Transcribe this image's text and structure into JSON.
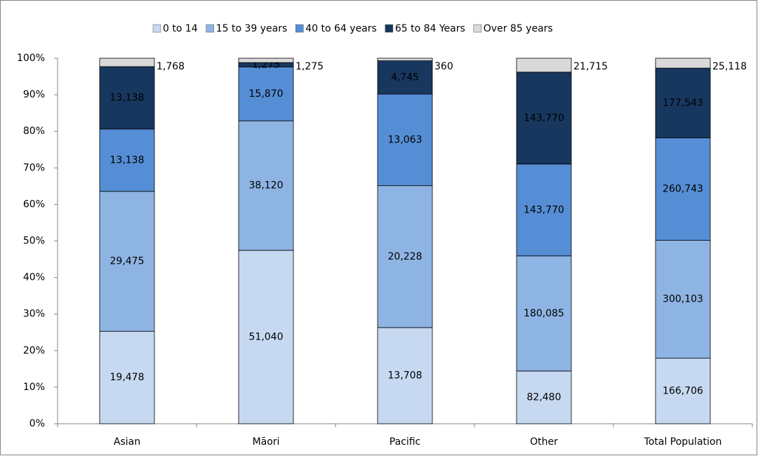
{
  "chart_data": {
    "type": "bar",
    "stacked": "percent",
    "categories": [
      "Asian",
      "Māori",
      "Pacific",
      "Other",
      "Total Population"
    ],
    "series": [
      {
        "name": "0  to 14",
        "color": "#c6d9f1",
        "values": [
          19478,
          51040,
          13708,
          82480,
          166706
        ],
        "value_labels": [
          "19,478",
          "51,040",
          "13,708",
          "82,480",
          "166,706"
        ]
      },
      {
        "name": "15 to 39 years",
        "color": "#8eb4e3",
        "values": [
          29475,
          38120,
          20228,
          180085,
          300103
        ],
        "value_labels": [
          "29,475",
          "38,120",
          "20,228",
          "180,085",
          "300,103"
        ]
      },
      {
        "name": "40 to 64 years",
        "color": "#558ed5",
        "values": [
          13138,
          15870,
          13063,
          143770,
          260743
        ],
        "value_labels": [
          "13,138",
          "15,870",
          "13,063",
          "143,770",
          "260,743"
        ]
      },
      {
        "name": "65 to 84 Years",
        "color": "#17375e",
        "values": [
          13138,
          1275,
          4745,
          143770,
          177543
        ],
        "value_labels": [
          "13,138",
          "1,275",
          "4,745",
          "143,770",
          "177,543"
        ]
      },
      {
        "name": "Over 85 years",
        "color": "#d9d9d9",
        "values": [
          1768,
          1275,
          360,
          21715,
          25118
        ],
        "value_labels": [
          "1,768",
          "1,275",
          "360",
          "21,715",
          "25,118"
        ]
      }
    ],
    "ylim": [
      0,
      100
    ],
    "yticks": [
      {
        "value": 0,
        "label": "0%"
      },
      {
        "value": 10,
        "label": "10%"
      },
      {
        "value": 20,
        "label": "20%"
      },
      {
        "value": 30,
        "label": "30%"
      },
      {
        "value": 40,
        "label": "40%"
      },
      {
        "value": 50,
        "label": "50%"
      },
      {
        "value": 60,
        "label": "60%"
      },
      {
        "value": 70,
        "label": "70%"
      },
      {
        "value": 80,
        "label": "80%"
      },
      {
        "value": 90,
        "label": "90%"
      },
      {
        "value": 100,
        "label": "100%"
      }
    ],
    "grid": false,
    "legend": "top"
  }
}
